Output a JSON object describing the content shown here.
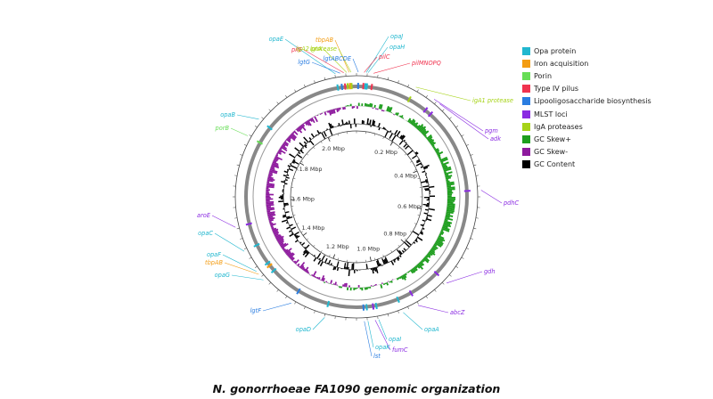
{
  "figure": {
    "caption": "N. gonorrhoeae FA1090 genomic organization"
  },
  "legend": [
    {
      "label": "Opa protein",
      "color": "#21b7cf"
    },
    {
      "label": "Iron acquisition",
      "color": "#f39c12"
    },
    {
      "label": "Porin",
      "color": "#66dd55"
    },
    {
      "label": "Type IV pilus",
      "color": "#f0334f"
    },
    {
      "label": "Lipooligosaccharide biosynthesis",
      "color": "#2a7de1"
    },
    {
      "label": "MLST loci",
      "color": "#8a2be2"
    },
    {
      "label": "IgA proteases",
      "color": "#a6d317"
    },
    {
      "label": "GC Skew+",
      "color": "#1e9e1e"
    },
    {
      "label": "GC Skew-",
      "color": "#8e1a9e"
    },
    {
      "label": "GC Content",
      "color": "#000000"
    }
  ],
  "genome": {
    "size_mbp": 2.153,
    "ruler_ticks": [
      "0.2 Mbp",
      "0.4 Mbp",
      "0.6 Mbp",
      "0.8 Mbp",
      "1.0 Mbp",
      "1.2 Mbp",
      "1.4 Mbp",
      "1.6 Mbp",
      "1.8 Mbp",
      "2.0 Mbp"
    ],
    "ruler_positions_mbp": [
      0.2,
      0.4,
      0.6,
      0.8,
      1.0,
      1.2,
      1.4,
      1.6,
      1.8,
      2.0
    ]
  },
  "features": [
    {
      "label": "opaE",
      "category": "Opa protein",
      "pos_mbp": 2.095
    },
    {
      "label": "pilE",
      "category": "Type IV pilus",
      "pos_mbp": 2.118
    },
    {
      "label": "lgtG",
      "category": "Lipooligosaccharide biosynthesis",
      "pos_mbp": 2.108
    },
    {
      "label": "lgtA",
      "category": "IgA proteases",
      "pos_mbp": 2.126
    },
    {
      "label": "tbpAB",
      "category": "Iron acquisition",
      "pos_mbp": 2.133
    },
    {
      "label": "igA2 protease",
      "category": "IgA proteases",
      "pos_mbp": 2.138
    },
    {
      "label": "lgtABCDE",
      "category": "Lipooligosaccharide biosynthesis",
      "pos_mbp": 0.005
    },
    {
      "label": "opaJ",
      "category": "Opa protein",
      "pos_mbp": 0.027
    },
    {
      "label": "opaH",
      "category": "Opa protein",
      "pos_mbp": 0.032
    },
    {
      "label": "pilC",
      "category": "Type IV pilus",
      "pos_mbp": 0.021
    },
    {
      "label": "pilMNOPQ",
      "category": "Type IV pilus",
      "pos_mbp": 0.047
    },
    {
      "label": "igA1 protease",
      "category": "IgA proteases",
      "pos_mbp": 0.17
    },
    {
      "label": "pgm",
      "category": "MLST loci",
      "pos_mbp": 0.23
    },
    {
      "label": "adk",
      "category": "MLST loci",
      "pos_mbp": 0.25
    },
    {
      "label": "pdhC",
      "category": "MLST loci",
      "pos_mbp": 0.52
    },
    {
      "label": "gdh",
      "category": "MLST loci",
      "pos_mbp": 0.8
    },
    {
      "label": "abcZ",
      "category": "MLST loci",
      "pos_mbp": 0.9
    },
    {
      "label": "opaA",
      "category": "Opa protein",
      "pos_mbp": 0.945
    },
    {
      "label": "opaI",
      "category": "Opa protein",
      "pos_mbp": 1.015
    },
    {
      "label": "fumC",
      "category": "MLST loci",
      "pos_mbp": 1.025
    },
    {
      "label": "opaK",
      "category": "Opa protein",
      "pos_mbp": 1.045
    },
    {
      "label": "lst",
      "category": "Lipooligosaccharide biosynthesis",
      "pos_mbp": 1.055
    },
    {
      "label": "opaD",
      "category": "Opa protein",
      "pos_mbp": 1.165
    },
    {
      "label": "lgtF",
      "category": "Lipooligosaccharide biosynthesis",
      "pos_mbp": 1.265
    },
    {
      "label": "opaG",
      "category": "Opa protein",
      "pos_mbp": 1.365
    },
    {
      "label": "tbpAB",
      "category": "Iron acquisition",
      "pos_mbp": 1.385
    },
    {
      "label": "opaF",
      "category": "Opa protein",
      "pos_mbp": 1.395
    },
    {
      "label": "opaC",
      "category": "Opa protein",
      "pos_mbp": 1.46
    },
    {
      "label": "aroE",
      "category": "MLST loci",
      "pos_mbp": 1.53
    },
    {
      "label": "porB",
      "category": "Porin",
      "pos_mbp": 1.79
    },
    {
      "label": "opaB",
      "category": "Opa protein",
      "pos_mbp": 1.845
    }
  ]
}
